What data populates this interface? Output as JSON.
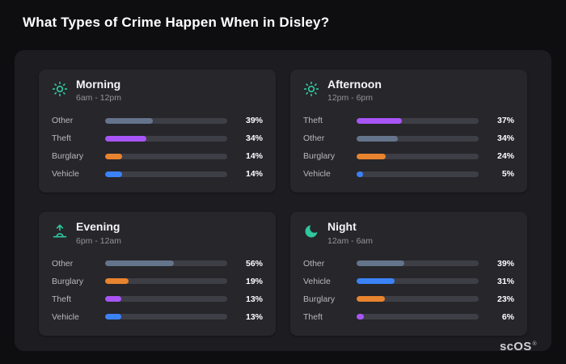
{
  "page": {
    "title": "What Types of Crime Happen When in Disley?",
    "logo": "scOS",
    "logo_mark": "®"
  },
  "colors": {
    "background": "#0e0e11",
    "panel": "#1c1c21",
    "card": "#26262b",
    "track": "#3e3e46",
    "icon_teal": "#2fc79e"
  },
  "category_colors": {
    "Other": "#64748b",
    "Theft": "#a855f7",
    "Burglary": "#e8832f",
    "Vehicle": "#3b82f6"
  },
  "chart_data": [
    {
      "type": "bar",
      "title": "Morning",
      "subtitle": "6am - 12pm",
      "icon": "sun-icon",
      "categories": [
        "Other",
        "Theft",
        "Burglary",
        "Vehicle"
      ],
      "values": [
        39,
        34,
        14,
        14
      ],
      "value_suffix": "%",
      "xlim": [
        0,
        100
      ]
    },
    {
      "type": "bar",
      "title": "Afternoon",
      "subtitle": "12pm - 6pm",
      "icon": "sun-icon",
      "categories": [
        "Theft",
        "Other",
        "Burglary",
        "Vehicle"
      ],
      "values": [
        37,
        34,
        24,
        5
      ],
      "value_suffix": "%",
      "xlim": [
        0,
        100
      ]
    },
    {
      "type": "bar",
      "title": "Evening",
      "subtitle": "6pm - 12am",
      "icon": "sunrise-icon",
      "categories": [
        "Other",
        "Burglary",
        "Theft",
        "Vehicle"
      ],
      "values": [
        56,
        19,
        13,
        13
      ],
      "value_suffix": "%",
      "xlim": [
        0,
        100
      ]
    },
    {
      "type": "bar",
      "title": "Night",
      "subtitle": "12am - 6am",
      "icon": "moon-icon",
      "categories": [
        "Other",
        "Vehicle",
        "Burglary",
        "Theft"
      ],
      "values": [
        39,
        31,
        23,
        6
      ],
      "value_suffix": "%",
      "xlim": [
        0,
        100
      ]
    }
  ]
}
